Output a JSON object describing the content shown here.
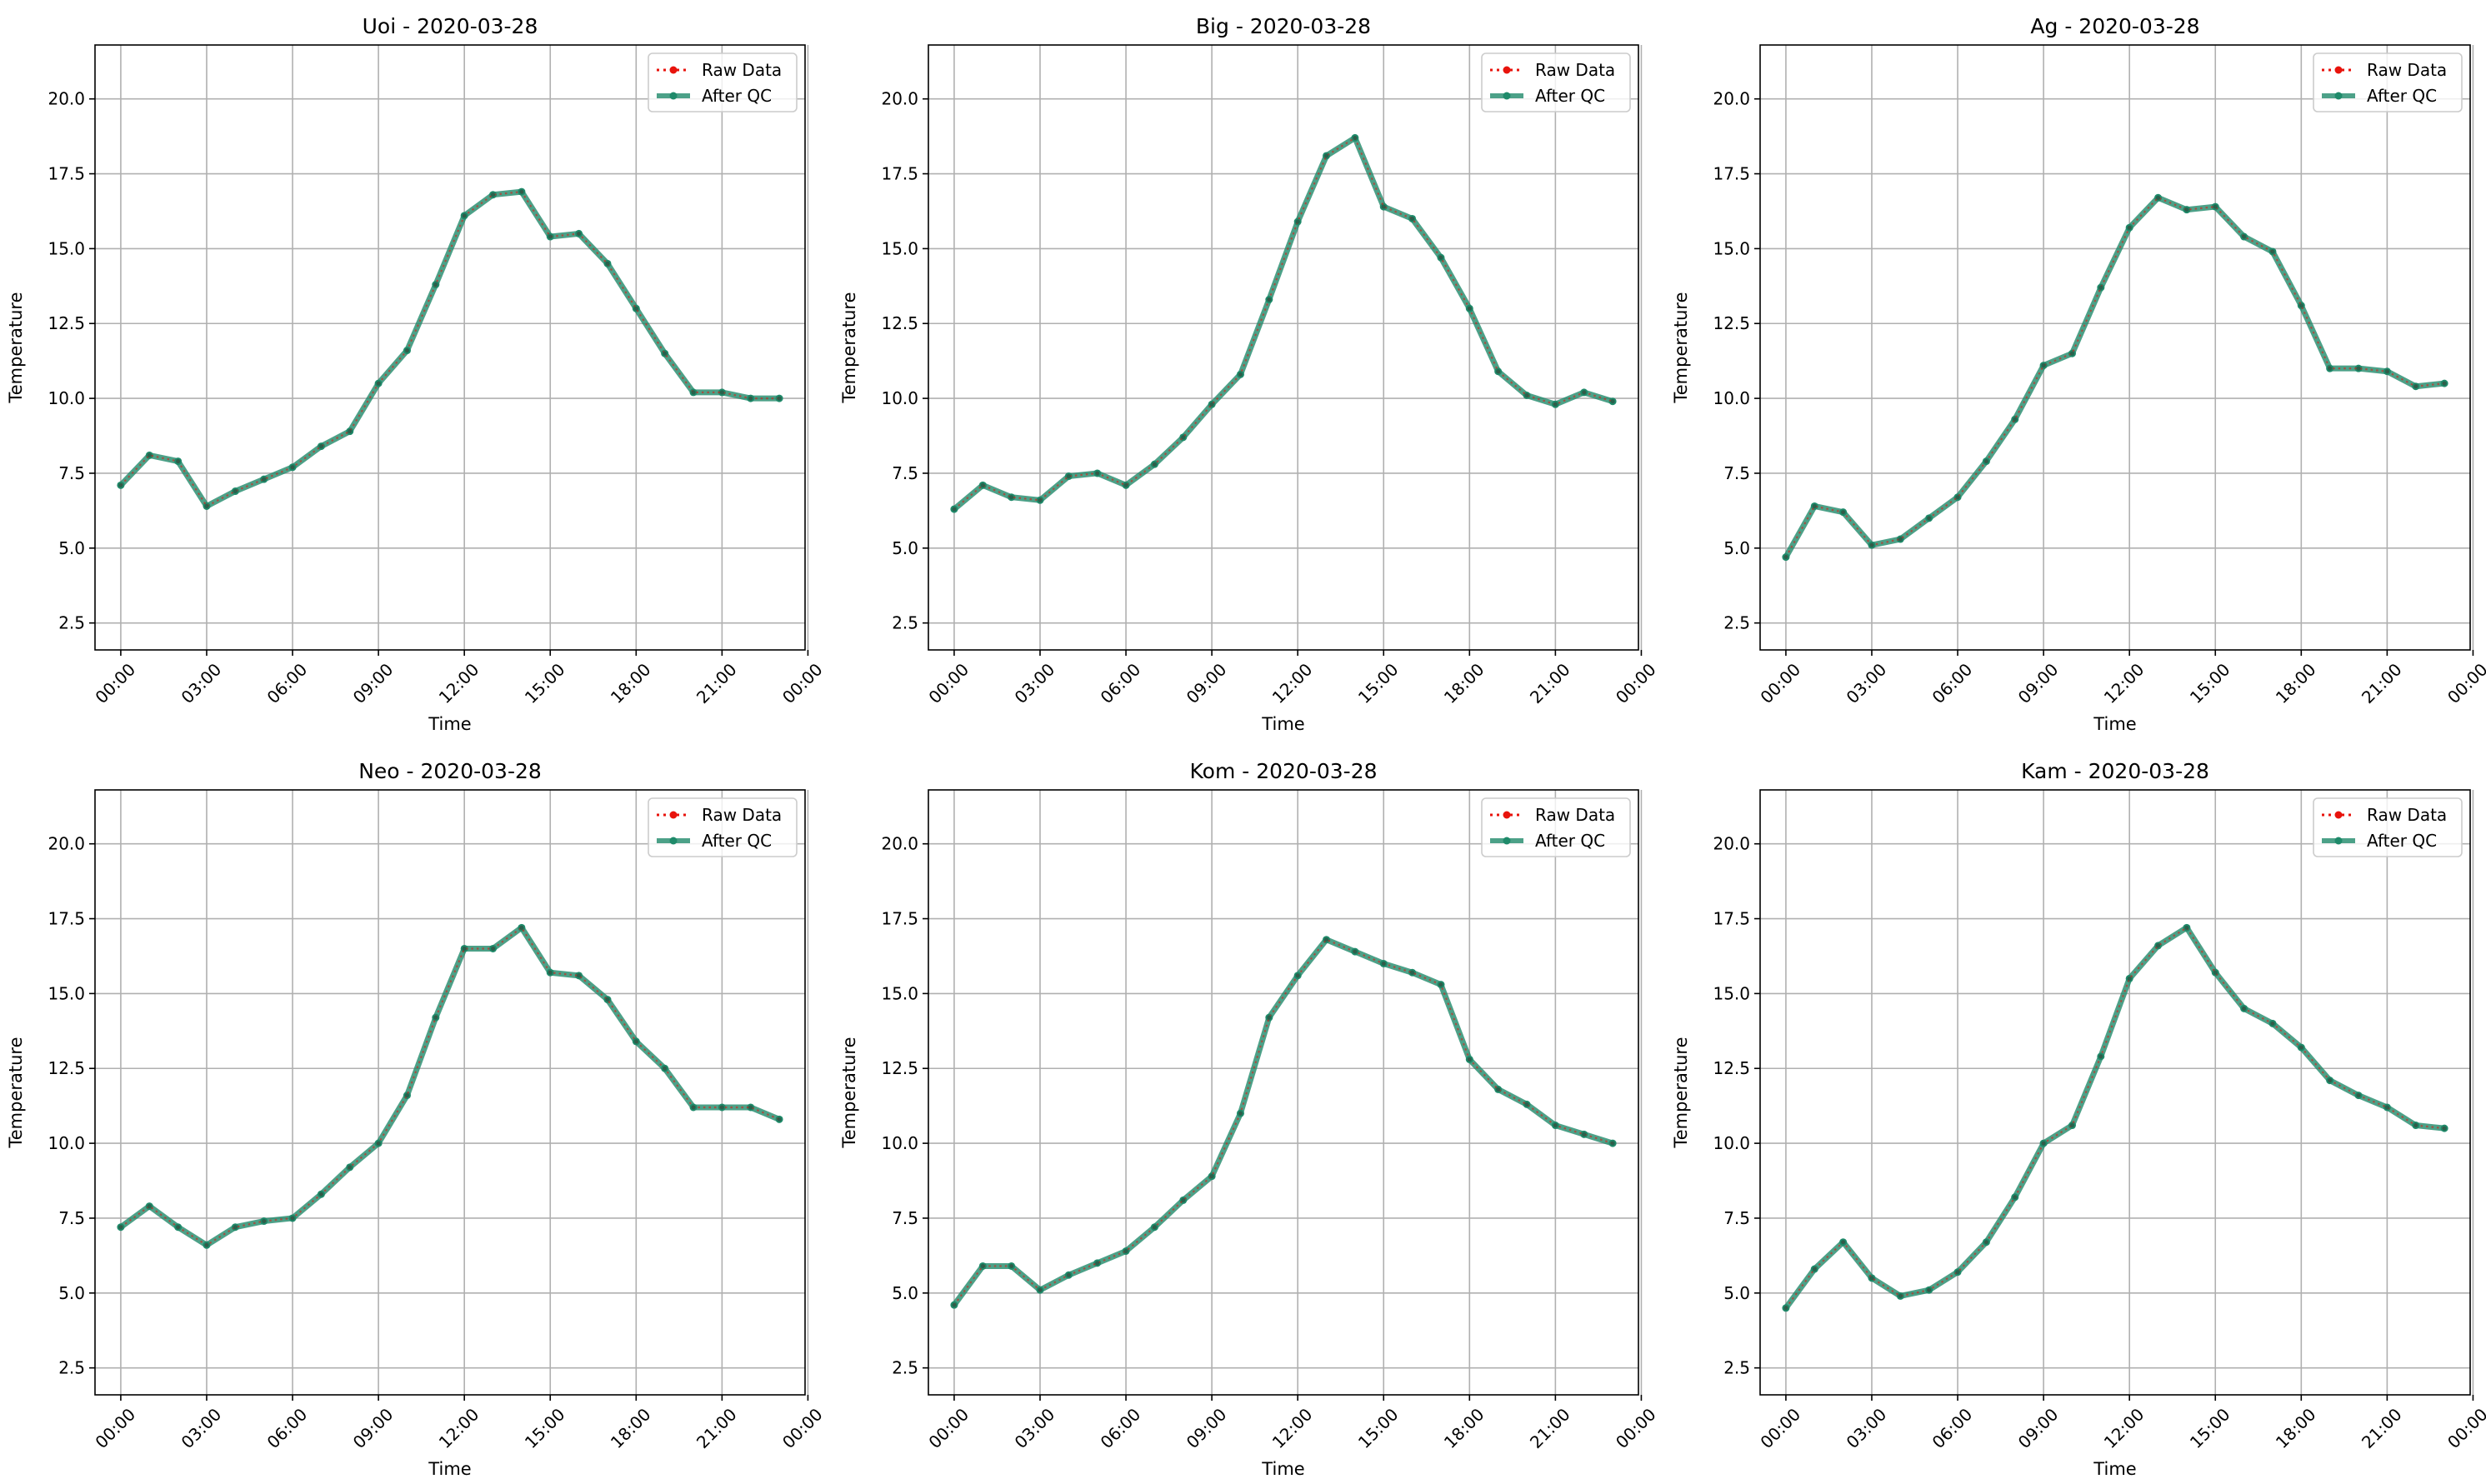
{
  "colors": {
    "raw": "#e8130c",
    "qc": "#1f8a6a",
    "grid": "#b0b0b0"
  },
  "chart_data": [
    {
      "type": "line",
      "title": "Uoi - 2020-03-28",
      "xlabel": "Time",
      "ylabel": "Temperature",
      "ylim": [
        1.6,
        21.8
      ],
      "xlim": [
        -0.9,
        23.9
      ],
      "x_tick_hours": [
        0,
        3,
        6,
        9,
        12,
        15,
        18,
        21,
        24
      ],
      "x_tick_labels": [
        "00:00",
        "03:00",
        "06:00",
        "09:00",
        "12:00",
        "15:00",
        "18:00",
        "21:00",
        "00:00"
      ],
      "y_ticks": [
        2.5,
        5.0,
        7.5,
        10.0,
        12.5,
        15.0,
        17.5,
        20.0
      ],
      "y_tick_labels": [
        "2.5",
        "5.0",
        "7.5",
        "10.0",
        "12.5",
        "15.0",
        "17.5",
        "20.0"
      ],
      "grid": true,
      "legend_position": "top-right",
      "series": [
        {
          "name": "Raw Data",
          "style": "dotted",
          "color": "#e8130c",
          "x": [
            "00:00",
            "01:00",
            "02:00",
            "03:00",
            "04:00",
            "05:00",
            "06:00",
            "07:00",
            "08:00",
            "09:00",
            "10:00",
            "11:00",
            "12:00",
            "13:00",
            "14:00",
            "15:00",
            "16:00",
            "17:00",
            "18:00",
            "19:00",
            "20:00",
            "21:00",
            "22:00",
            "23:00"
          ],
          "values": [
            7.1,
            8.1,
            7.9,
            6.4,
            6.9,
            7.3,
            7.7,
            8.4,
            8.9,
            10.5,
            11.6,
            13.8,
            16.1,
            16.8,
            16.9,
            15.4,
            15.5,
            14.5,
            13.0,
            11.5,
            10.2,
            10.2,
            10.0,
            10.0
          ]
        },
        {
          "name": "After QC",
          "style": "solid",
          "color": "#1f8a6a",
          "x": [
            "00:00",
            "01:00",
            "02:00",
            "03:00",
            "04:00",
            "05:00",
            "06:00",
            "07:00",
            "08:00",
            "09:00",
            "10:00",
            "11:00",
            "12:00",
            "13:00",
            "14:00",
            "15:00",
            "16:00",
            "17:00",
            "18:00",
            "19:00",
            "20:00",
            "21:00",
            "22:00",
            "23:00"
          ],
          "values": [
            7.1,
            8.1,
            7.9,
            6.4,
            6.9,
            7.3,
            7.7,
            8.4,
            8.9,
            10.5,
            11.6,
            13.8,
            16.1,
            16.8,
            16.9,
            15.4,
            15.5,
            14.5,
            13.0,
            11.5,
            10.2,
            10.2,
            10.0,
            10.0
          ]
        }
      ]
    },
    {
      "type": "line",
      "title": "Big - 2020-03-28",
      "xlabel": "Time",
      "ylabel": "Temperature",
      "ylim": [
        1.6,
        21.8
      ],
      "xlim": [
        -0.9,
        23.9
      ],
      "x_tick_hours": [
        0,
        3,
        6,
        9,
        12,
        15,
        18,
        21,
        24
      ],
      "x_tick_labels": [
        "00:00",
        "03:00",
        "06:00",
        "09:00",
        "12:00",
        "15:00",
        "18:00",
        "21:00",
        "00:00"
      ],
      "y_ticks": [
        2.5,
        5.0,
        7.5,
        10.0,
        12.5,
        15.0,
        17.5,
        20.0
      ],
      "y_tick_labels": [
        "2.5",
        "5.0",
        "7.5",
        "10.0",
        "12.5",
        "15.0",
        "17.5",
        "20.0"
      ],
      "grid": true,
      "legend_position": "top-right",
      "series": [
        {
          "name": "Raw Data",
          "style": "dotted",
          "color": "#e8130c",
          "x": [
            "00:00",
            "01:00",
            "02:00",
            "03:00",
            "04:00",
            "05:00",
            "06:00",
            "07:00",
            "08:00",
            "09:00",
            "10:00",
            "11:00",
            "12:00",
            "13:00",
            "14:00",
            "15:00",
            "16:00",
            "17:00",
            "18:00",
            "19:00",
            "20:00",
            "21:00",
            "22:00",
            "23:00"
          ],
          "values": [
            6.3,
            7.1,
            6.7,
            6.6,
            7.4,
            7.5,
            7.1,
            7.8,
            8.7,
            9.8,
            10.8,
            13.3,
            15.9,
            18.1,
            18.7,
            16.4,
            16.0,
            14.7,
            13.0,
            10.9,
            10.1,
            9.8,
            10.2,
            9.9
          ]
        },
        {
          "name": "After QC",
          "style": "solid",
          "color": "#1f8a6a",
          "x": [
            "00:00",
            "01:00",
            "02:00",
            "03:00",
            "04:00",
            "05:00",
            "06:00",
            "07:00",
            "08:00",
            "09:00",
            "10:00",
            "11:00",
            "12:00",
            "13:00",
            "14:00",
            "15:00",
            "16:00",
            "17:00",
            "18:00",
            "19:00",
            "20:00",
            "21:00",
            "22:00",
            "23:00"
          ],
          "values": [
            6.3,
            7.1,
            6.7,
            6.6,
            7.4,
            7.5,
            7.1,
            7.8,
            8.7,
            9.8,
            10.8,
            13.3,
            15.9,
            18.1,
            18.7,
            16.4,
            16.0,
            14.7,
            13.0,
            10.9,
            10.1,
            9.8,
            10.2,
            9.9
          ]
        }
      ]
    },
    {
      "type": "line",
      "title": "Ag - 2020-03-28",
      "xlabel": "Time",
      "ylabel": "Temperature",
      "ylim": [
        1.6,
        21.8
      ],
      "xlim": [
        -0.9,
        23.9
      ],
      "x_tick_hours": [
        0,
        3,
        6,
        9,
        12,
        15,
        18,
        21,
        24
      ],
      "x_tick_labels": [
        "00:00",
        "03:00",
        "06:00",
        "09:00",
        "12:00",
        "15:00",
        "18:00",
        "21:00",
        "00:00"
      ],
      "y_ticks": [
        2.5,
        5.0,
        7.5,
        10.0,
        12.5,
        15.0,
        17.5,
        20.0
      ],
      "y_tick_labels": [
        "2.5",
        "5.0",
        "7.5",
        "10.0",
        "12.5",
        "15.0",
        "17.5",
        "20.0"
      ],
      "grid": true,
      "legend_position": "top-right",
      "series": [
        {
          "name": "Raw Data",
          "style": "dotted",
          "color": "#e8130c",
          "x": [
            "00:00",
            "01:00",
            "02:00",
            "03:00",
            "04:00",
            "05:00",
            "06:00",
            "07:00",
            "08:00",
            "09:00",
            "10:00",
            "11:00",
            "12:00",
            "13:00",
            "14:00",
            "15:00",
            "16:00",
            "17:00",
            "18:00",
            "19:00",
            "20:00",
            "21:00",
            "22:00",
            "23:00"
          ],
          "values": [
            4.7,
            6.4,
            6.2,
            5.1,
            5.3,
            6.0,
            6.7,
            7.9,
            9.3,
            11.1,
            11.5,
            13.7,
            15.7,
            16.7,
            16.3,
            16.4,
            15.4,
            14.9,
            13.1,
            11.0,
            11.0,
            10.9,
            10.4,
            10.5
          ]
        },
        {
          "name": "After QC",
          "style": "solid",
          "color": "#1f8a6a",
          "x": [
            "00:00",
            "01:00",
            "02:00",
            "03:00",
            "04:00",
            "05:00",
            "06:00",
            "07:00",
            "08:00",
            "09:00",
            "10:00",
            "11:00",
            "12:00",
            "13:00",
            "14:00",
            "15:00",
            "16:00",
            "17:00",
            "18:00",
            "19:00",
            "20:00",
            "21:00",
            "22:00",
            "23:00"
          ],
          "values": [
            4.7,
            6.4,
            6.2,
            5.1,
            5.3,
            6.0,
            6.7,
            7.9,
            9.3,
            11.1,
            11.5,
            13.7,
            15.7,
            16.7,
            16.3,
            16.4,
            15.4,
            14.9,
            13.1,
            11.0,
            11.0,
            10.9,
            10.4,
            10.5
          ]
        }
      ]
    },
    {
      "type": "line",
      "title": "Neo - 2020-03-28",
      "xlabel": "Time",
      "ylabel": "Temperature",
      "ylim": [
        1.6,
        21.8
      ],
      "xlim": [
        -0.9,
        23.9
      ],
      "x_tick_hours": [
        0,
        3,
        6,
        9,
        12,
        15,
        18,
        21,
        24
      ],
      "x_tick_labels": [
        "00:00",
        "03:00",
        "06:00",
        "09:00",
        "12:00",
        "15:00",
        "18:00",
        "21:00",
        "00:00"
      ],
      "y_ticks": [
        2.5,
        5.0,
        7.5,
        10.0,
        12.5,
        15.0,
        17.5,
        20.0
      ],
      "y_tick_labels": [
        "2.5",
        "5.0",
        "7.5",
        "10.0",
        "12.5",
        "15.0",
        "17.5",
        "20.0"
      ],
      "grid": true,
      "legend_position": "top-right",
      "series": [
        {
          "name": "Raw Data",
          "style": "dotted",
          "color": "#e8130c",
          "x": [
            "00:00",
            "01:00",
            "02:00",
            "03:00",
            "04:00",
            "05:00",
            "06:00",
            "07:00",
            "08:00",
            "09:00",
            "10:00",
            "11:00",
            "12:00",
            "13:00",
            "14:00",
            "15:00",
            "16:00",
            "17:00",
            "18:00",
            "19:00",
            "20:00",
            "21:00",
            "22:00",
            "23:00"
          ],
          "values": [
            7.2,
            7.9,
            7.2,
            6.6,
            7.2,
            7.4,
            7.5,
            8.3,
            9.2,
            10.0,
            11.6,
            14.2,
            16.5,
            16.5,
            17.2,
            15.7,
            15.6,
            14.8,
            13.4,
            12.5,
            11.2,
            11.2,
            11.2,
            10.8
          ]
        },
        {
          "name": "After QC",
          "style": "solid",
          "color": "#1f8a6a",
          "x": [
            "00:00",
            "01:00",
            "02:00",
            "03:00",
            "04:00",
            "05:00",
            "06:00",
            "07:00",
            "08:00",
            "09:00",
            "10:00",
            "11:00",
            "12:00",
            "13:00",
            "14:00",
            "15:00",
            "16:00",
            "17:00",
            "18:00",
            "19:00",
            "20:00",
            "21:00",
            "22:00",
            "23:00"
          ],
          "values": [
            7.2,
            7.9,
            7.2,
            6.6,
            7.2,
            7.4,
            7.5,
            8.3,
            9.2,
            10.0,
            11.6,
            14.2,
            16.5,
            16.5,
            17.2,
            15.7,
            15.6,
            14.8,
            13.4,
            12.5,
            11.2,
            11.2,
            11.2,
            10.8
          ]
        }
      ]
    },
    {
      "type": "line",
      "title": "Kom - 2020-03-28",
      "xlabel": "Time",
      "ylabel": "Temperature",
      "ylim": [
        1.6,
        21.8
      ],
      "xlim": [
        -0.9,
        23.9
      ],
      "x_tick_hours": [
        0,
        3,
        6,
        9,
        12,
        15,
        18,
        21,
        24
      ],
      "x_tick_labels": [
        "00:00",
        "03:00",
        "06:00",
        "09:00",
        "12:00",
        "15:00",
        "18:00",
        "21:00",
        "00:00"
      ],
      "y_ticks": [
        2.5,
        5.0,
        7.5,
        10.0,
        12.5,
        15.0,
        17.5,
        20.0
      ],
      "y_tick_labels": [
        "2.5",
        "5.0",
        "7.5",
        "10.0",
        "12.5",
        "15.0",
        "17.5",
        "20.0"
      ],
      "grid": true,
      "legend_position": "top-right",
      "series": [
        {
          "name": "Raw Data",
          "style": "dotted",
          "color": "#e8130c",
          "x": [
            "00:00",
            "01:00",
            "02:00",
            "03:00",
            "04:00",
            "05:00",
            "06:00",
            "07:00",
            "08:00",
            "09:00",
            "10:00",
            "11:00",
            "12:00",
            "13:00",
            "14:00",
            "15:00",
            "16:00",
            "17:00",
            "18:00",
            "19:00",
            "20:00",
            "21:00",
            "22:00",
            "23:00"
          ],
          "values": [
            4.6,
            5.9,
            5.9,
            5.1,
            5.6,
            6.0,
            6.4,
            7.2,
            8.1,
            8.9,
            11.0,
            14.2,
            15.6,
            16.8,
            16.4,
            16.0,
            15.7,
            15.3,
            12.8,
            11.8,
            11.3,
            10.6,
            10.3,
            10.0
          ]
        },
        {
          "name": "After QC",
          "style": "solid",
          "color": "#1f8a6a",
          "x": [
            "00:00",
            "01:00",
            "02:00",
            "03:00",
            "04:00",
            "05:00",
            "06:00",
            "07:00",
            "08:00",
            "09:00",
            "10:00",
            "11:00",
            "12:00",
            "13:00",
            "14:00",
            "15:00",
            "16:00",
            "17:00",
            "18:00",
            "19:00",
            "20:00",
            "21:00",
            "22:00",
            "23:00"
          ],
          "values": [
            4.6,
            5.9,
            5.9,
            5.1,
            5.6,
            6.0,
            6.4,
            7.2,
            8.1,
            8.9,
            11.0,
            14.2,
            15.6,
            16.8,
            16.4,
            16.0,
            15.7,
            15.3,
            12.8,
            11.8,
            11.3,
            10.6,
            10.3,
            10.0
          ]
        }
      ]
    },
    {
      "type": "line",
      "title": "Kam - 2020-03-28",
      "xlabel": "Time",
      "ylabel": "Temperature",
      "ylim": [
        1.6,
        21.8
      ],
      "xlim": [
        -0.9,
        23.9
      ],
      "x_tick_hours": [
        0,
        3,
        6,
        9,
        12,
        15,
        18,
        21,
        24
      ],
      "x_tick_labels": [
        "00:00",
        "03:00",
        "06:00",
        "09:00",
        "12:00",
        "15:00",
        "18:00",
        "21:00",
        "00:00"
      ],
      "y_ticks": [
        2.5,
        5.0,
        7.5,
        10.0,
        12.5,
        15.0,
        17.5,
        20.0
      ],
      "y_tick_labels": [
        "2.5",
        "5.0",
        "7.5",
        "10.0",
        "12.5",
        "15.0",
        "17.5",
        "20.0"
      ],
      "grid": true,
      "legend_position": "top-right",
      "series": [
        {
          "name": "Raw Data",
          "style": "dotted",
          "color": "#e8130c",
          "x": [
            "00:00",
            "01:00",
            "02:00",
            "03:00",
            "04:00",
            "05:00",
            "06:00",
            "07:00",
            "08:00",
            "09:00",
            "10:00",
            "11:00",
            "12:00",
            "13:00",
            "14:00",
            "15:00",
            "16:00",
            "17:00",
            "18:00",
            "19:00",
            "20:00",
            "21:00",
            "22:00",
            "23:00"
          ],
          "values": [
            4.5,
            5.8,
            6.7,
            5.5,
            4.9,
            5.1,
            5.7,
            6.7,
            8.2,
            10.0,
            10.6,
            12.9,
            15.5,
            16.6,
            17.2,
            15.7,
            14.5,
            14.0,
            13.2,
            12.1,
            11.6,
            11.2,
            10.6,
            10.5
          ]
        },
        {
          "name": "After QC",
          "style": "solid",
          "color": "#1f8a6a",
          "x": [
            "00:00",
            "01:00",
            "02:00",
            "03:00",
            "04:00",
            "05:00",
            "06:00",
            "07:00",
            "08:00",
            "09:00",
            "10:00",
            "11:00",
            "12:00",
            "13:00",
            "14:00",
            "15:00",
            "16:00",
            "17:00",
            "18:00",
            "19:00",
            "20:00",
            "21:00",
            "22:00",
            "23:00"
          ],
          "values": [
            4.5,
            5.8,
            6.7,
            5.5,
            4.9,
            5.1,
            5.7,
            6.7,
            8.2,
            10.0,
            10.6,
            12.9,
            15.5,
            16.6,
            17.2,
            15.7,
            14.5,
            14.0,
            13.2,
            12.1,
            11.6,
            11.2,
            10.6,
            10.5
          ]
        }
      ]
    }
  ]
}
